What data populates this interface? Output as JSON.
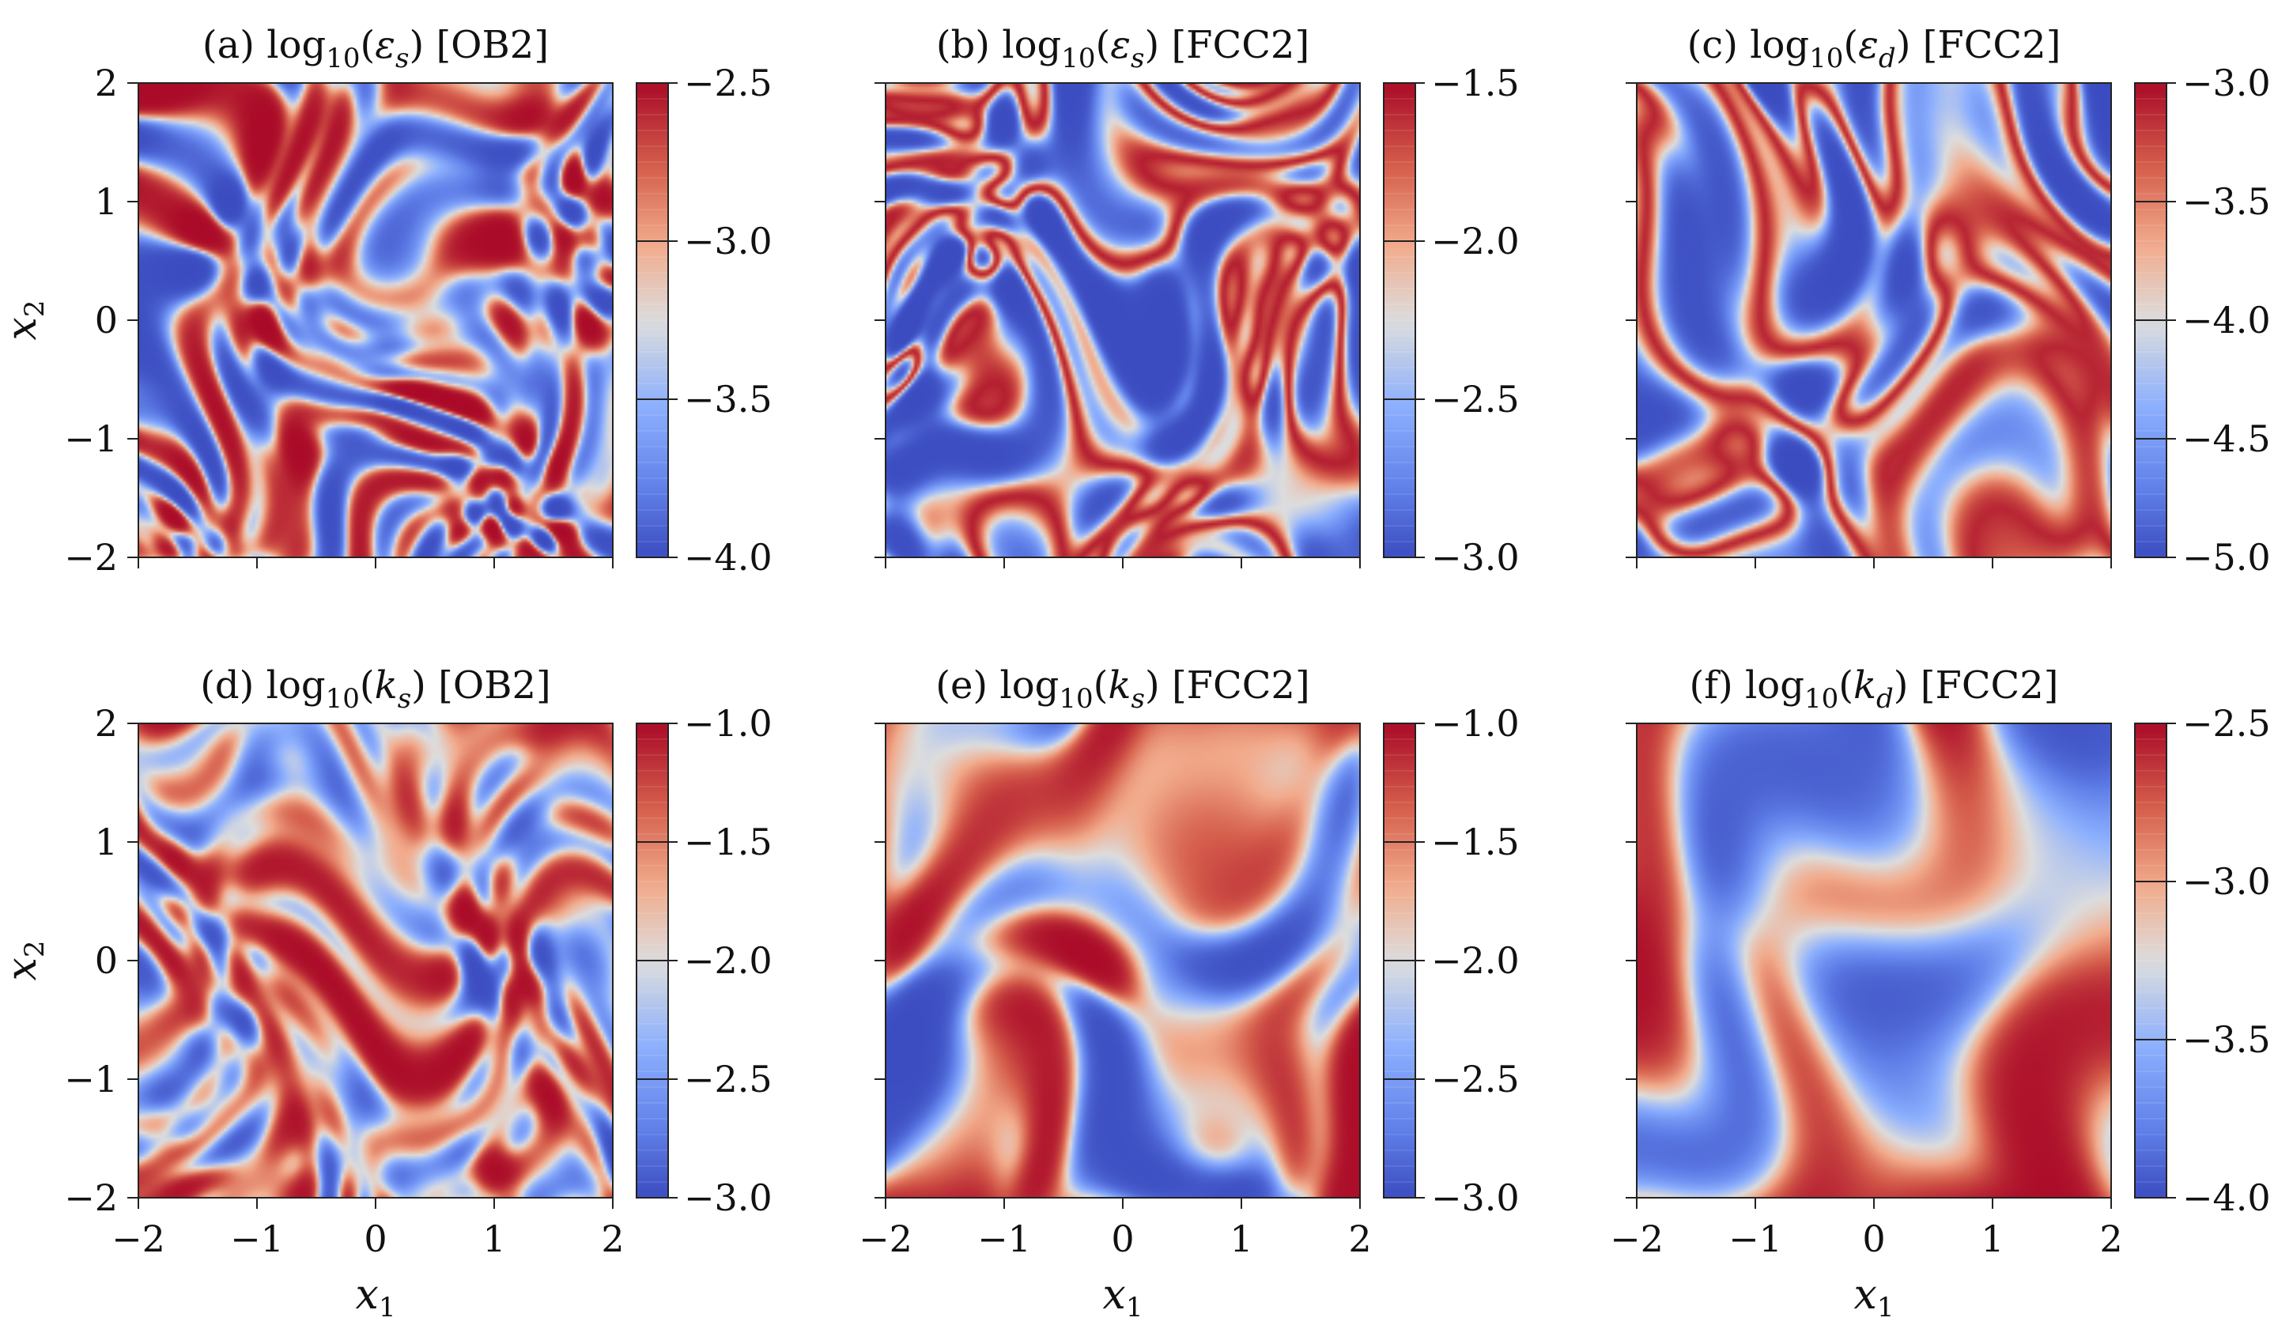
{
  "chart_data": [
    {
      "type": "heatmap",
      "panel": "(a)",
      "title": "log10(εs) [OB2]",
      "title_parts": {
        "prefix": "log",
        "sub": "10",
        "symbol": "ε",
        "symsub": "s",
        "tag": "[OB2]"
      },
      "xlabel": "",
      "ylabel": "x2",
      "xlim": [
        -2,
        2
      ],
      "ylim": [
        -2,
        2
      ],
      "colorbar": {
        "min": -4.0,
        "max": -2.5,
        "ticks": [
          -2.5,
          -3.0,
          -3.5,
          -4.0
        ],
        "tick_labels": [
          "−2.5",
          "−3.0",
          "−3.5",
          "−4.0"
        ]
      },
      "x_tick_labels": [],
      "y_tick_labels": [
        "2",
        "1",
        "0",
        "−1",
        "−2"
      ],
      "field": {
        "kind": "small-scale",
        "bias": 0.05,
        "contrast": 2.4,
        "seed": 11
      }
    },
    {
      "type": "heatmap",
      "panel": "(b)",
      "title": "log10(εs) [FCC2]",
      "title_parts": {
        "prefix": "log",
        "sub": "10",
        "symbol": "ε",
        "symsub": "s",
        "tag": "[FCC2]"
      },
      "xlabel": "",
      "ylabel": "",
      "xlim": [
        -2,
        2
      ],
      "ylim": [
        -2,
        2
      ],
      "colorbar": {
        "min": -3.0,
        "max": -1.5,
        "ticks": [
          -1.5,
          -2.0,
          -2.5,
          -3.0
        ],
        "tick_labels": [
          "−1.5",
          "−2.0",
          "−2.5",
          "−3.0"
        ]
      },
      "x_tick_labels": [],
      "y_tick_labels": [],
      "field": {
        "kind": "filaments",
        "bias": -0.35,
        "contrast": 2.6,
        "seed": 23
      }
    },
    {
      "type": "heatmap",
      "panel": "(c)",
      "title": "log10(εd) [FCC2]",
      "title_parts": {
        "prefix": "log",
        "sub": "10",
        "symbol": "ε",
        "symsub": "d",
        "tag": "[FCC2]"
      },
      "xlabel": "",
      "ylabel": "",
      "xlim": [
        -2,
        2
      ],
      "ylim": [
        -2,
        2
      ],
      "colorbar": {
        "min": -5.0,
        "max": -3.0,
        "ticks": [
          -3.0,
          -3.5,
          -4.0,
          -4.5,
          -5.0
        ],
        "tick_labels": [
          "−3.0",
          "−3.5",
          "−4.0",
          "−4.5",
          "−5.0"
        ]
      },
      "x_tick_labels": [],
      "y_tick_labels": [],
      "field": {
        "kind": "filaments-smooth",
        "bias": -0.1,
        "contrast": 2.2,
        "seed": 37
      }
    },
    {
      "type": "heatmap",
      "panel": "(d)",
      "title": "log10(ks) [OB2]",
      "title_parts": {
        "prefix": "log",
        "sub": "10",
        "symbol": "k",
        "symsub": "s",
        "tag": "[OB2]"
      },
      "xlabel": "x1",
      "ylabel": "x2",
      "xlim": [
        -2,
        2
      ],
      "ylim": [
        -2,
        2
      ],
      "colorbar": {
        "min": -3.0,
        "max": -1.0,
        "ticks": [
          -1.0,
          -1.5,
          -2.0,
          -2.5,
          -3.0
        ],
        "tick_labels": [
          "−1.0",
          "−1.5",
          "−2.0",
          "−2.5",
          "−3.0"
        ]
      },
      "x_tick_labels": [
        "−2",
        "−1",
        "0",
        "1",
        "2"
      ],
      "y_tick_labels": [
        "2",
        "1",
        "0",
        "−1",
        "−2"
      ],
      "field": {
        "kind": "small-scale",
        "bias": 0.3,
        "contrast": 1.6,
        "seed": 51
      }
    },
    {
      "type": "heatmap",
      "panel": "(e)",
      "title": "log10(ks) [FCC2]",
      "title_parts": {
        "prefix": "log",
        "sub": "10",
        "symbol": "k",
        "symsub": "s",
        "tag": "[FCC2]"
      },
      "xlabel": "x1",
      "ylabel": "",
      "xlim": [
        -2,
        2
      ],
      "ylim": [
        -2,
        2
      ],
      "colorbar": {
        "min": -3.0,
        "max": -1.0,
        "ticks": [
          -1.0,
          -1.5,
          -2.0,
          -2.5,
          -3.0
        ],
        "tick_labels": [
          "−1.0",
          "−1.5",
          "−2.0",
          "−2.5",
          "−3.0"
        ]
      },
      "x_tick_labels": [
        "−2",
        "−1",
        "0",
        "1",
        "2"
      ],
      "y_tick_labels": [],
      "field": {
        "kind": "blobs",
        "bias": 0.1,
        "contrast": 2.0,
        "seed": 67
      }
    },
    {
      "type": "heatmap",
      "panel": "(f)",
      "title": "log10(kd) [FCC2]",
      "title_parts": {
        "prefix": "log",
        "sub": "10",
        "symbol": "k",
        "symsub": "d",
        "tag": "[FCC2]"
      },
      "xlabel": "x1",
      "ylabel": "",
      "xlim": [
        -2,
        2
      ],
      "ylim": [
        -2,
        2
      ],
      "colorbar": {
        "min": -4.0,
        "max": -2.5,
        "ticks": [
          -2.5,
          -3.0,
          -3.5,
          -4.0
        ],
        "tick_labels": [
          "−2.5",
          "−3.0",
          "−3.5",
          "−4.0"
        ]
      },
      "x_tick_labels": [
        "−2",
        "−1",
        "0",
        "1",
        "2"
      ],
      "y_tick_labels": [],
      "field": {
        "kind": "smooth",
        "bias": 0.0,
        "contrast": 1.8,
        "seed": 79
      }
    }
  ]
}
